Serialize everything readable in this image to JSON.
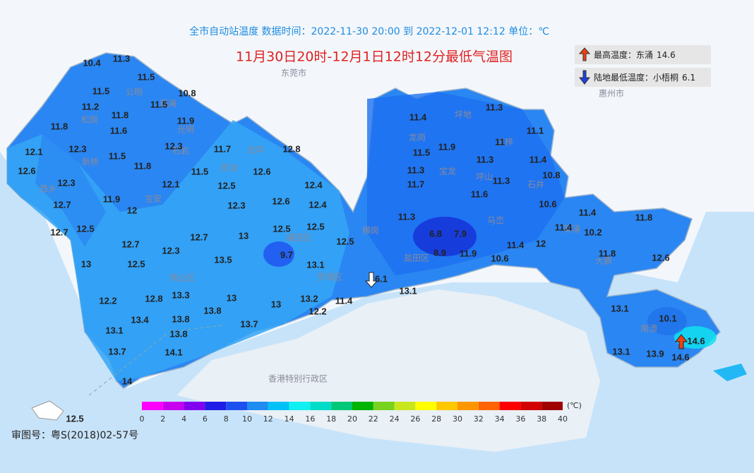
{
  "header": {
    "subtitle": "全市自动站温度  数据时间：2022-11-30 20:00 到 2022-12-01 12:12  单位：℃",
    "title": "11月30日20时-12月1日12时12分最低气温图"
  },
  "legend": [
    {
      "label": "最高温度：东涌",
      "value": 14.6
    },
    {
      "label": "陆地最低温度：小梧桐",
      "value": 6.1
    }
  ],
  "places": [
    "东莞市",
    "惠州市",
    "香港特别行政区",
    "观澜",
    "公明",
    "松岗",
    "光明",
    "新桥",
    "石岩",
    "龙华",
    "坪地",
    "龙岗",
    "坪山",
    "石井",
    "宝龙",
    "横岗",
    "大鹏",
    "南澳",
    "罗湖区",
    "盐田区",
    "福田区",
    "南山区",
    "葵涌",
    "坑梓",
    "马峦",
    "西乡",
    "民治",
    "宝安"
  ],
  "stations": [
    10.4,
    11.3,
    11.5,
    11.5,
    10.8,
    11.2,
    11.5,
    11.8,
    11.9,
    11.6,
    11.8,
    12.1,
    12.3,
    11.5,
    12.3,
    11.7,
    12.8,
    12.6,
    11.8,
    11.5,
    12.6,
    12.3,
    12.1,
    12.5,
    12.4,
    11.9,
    12,
    12.7,
    12.3,
    12.6,
    12.4,
    12.5,
    12.7,
    12.7,
    13,
    12.5,
    12.5,
    12.5,
    12.7,
    12.3,
    9.7,
    13,
    12.5,
    13.5,
    13.1,
    12.2,
    12.8,
    13.3,
    13,
    13,
    13.2,
    11.4,
    12.2,
    13.4,
    13.8,
    13.8,
    13.7,
    13.8,
    13.1,
    13.7,
    14.1,
    14,
    12.5,
    11.4,
    11.3,
    11.1,
    11.5,
    11.9,
    11,
    11.4,
    11.3,
    11.3,
    10.8,
    11.7,
    11.3,
    11.6,
    10.6,
    11.4,
    11.8,
    11.3,
    11.4,
    10.2,
    6.8,
    7.9,
    12,
    11.4,
    11.8,
    12.6,
    8.9,
    11.9,
    10.6,
    6.1,
    13.1,
    13.1,
    10.1,
    14.6,
    13.1,
    13.9,
    14.6
  ],
  "colorbar": {
    "ticks": [
      0,
      2,
      4,
      6,
      8,
      10,
      12,
      14,
      16,
      18,
      20,
      22,
      24,
      26,
      28,
      30,
      32,
      34,
      36,
      38,
      40
    ],
    "colors": [
      "#ff00ff",
      "#c800f0",
      "#8200f0",
      "#1e1ee6",
      "#1e50f0",
      "#1e8cf0",
      "#00c0f8",
      "#10f0f0",
      "#00dcc8",
      "#00c878",
      "#00b400",
      "#78d21e",
      "#c8e61e",
      "#ffff00",
      "#ffc800",
      "#ff9600",
      "#ff6400",
      "#ff0000",
      "#d20000",
      "#a00000"
    ],
    "unit": "(℃)"
  },
  "footer": "审图号：粤S(2018)02-57号"
}
